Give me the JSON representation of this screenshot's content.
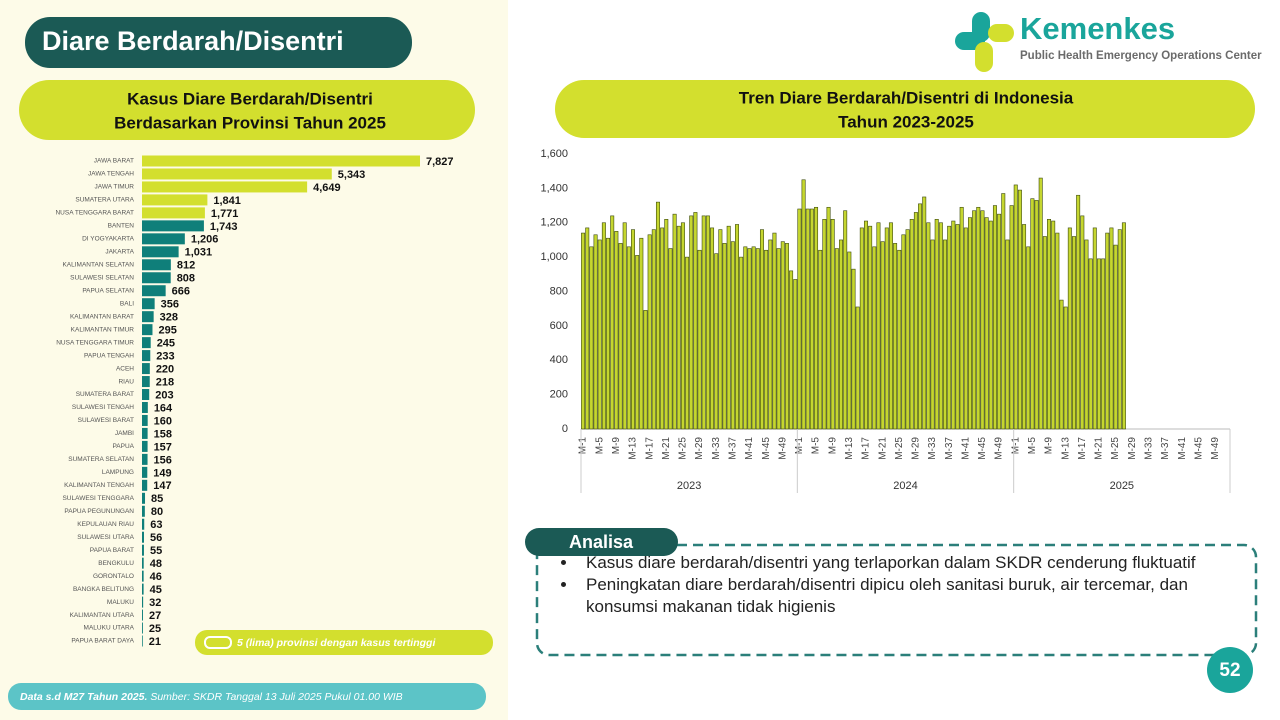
{
  "title": "Diare Berdarah/Disentri",
  "logo": {
    "name": "Kemenkes",
    "tagline": "Public Health Emergency Operations Center"
  },
  "chart_data": [
    {
      "type": "bar",
      "orientation": "horizontal",
      "title": [
        "Kasus Diare Berdarah/Disentri",
        "Berdasarkan Provinsi Tahun 2025"
      ],
      "categories": [
        "JAWA BARAT",
        "JAWA TENGAH",
        "JAWA TIMUR",
        "SUMATERA UTARA",
        "NUSA TENGGARA BARAT",
        "BANTEN",
        "DI YOGYAKARTA",
        "JAKARTA",
        "KALIMANTAN SELATAN",
        "SULAWESI SELATAN",
        "PAPUA SELATAN",
        "BALI",
        "KALIMANTAN BARAT",
        "KALIMANTAN TIMUR",
        "NUSA TENGGARA TIMUR",
        "PAPUA TENGAH",
        "ACEH",
        "RIAU",
        "SUMATERA BARAT",
        "SULAWESI TENGAH",
        "SULAWESI BARAT",
        "JAMBI",
        "PAPUA",
        "SUMATERA SELATAN",
        "LAMPUNG",
        "KALIMANTAN TENGAH",
        "SULAWESI TENGGARA",
        "PAPUA PEGUNUNGAN",
        "KEPULAUAN RIAU",
        "SULAWESI UTARA",
        "PAPUA BARAT",
        "BENGKULU",
        "GORONTALO",
        "BANGKA BELITUNG",
        "MALUKU",
        "KALIMANTAN UTARA",
        "MALUKU UTARA",
        "PAPUA BARAT DAYA"
      ],
      "values": [
        7827,
        5343,
        4649,
        1841,
        1771,
        1743,
        1206,
        1031,
        812,
        808,
        666,
        356,
        328,
        295,
        245,
        233,
        220,
        218,
        203,
        164,
        160,
        158,
        157,
        156,
        149,
        147,
        85,
        80,
        63,
        56,
        55,
        48,
        46,
        45,
        32,
        27,
        25,
        21
      ],
      "value_labels": [
        "7,827",
        "5,343",
        "4,649",
        "1,841",
        "1,771",
        "1,743",
        "1,206",
        "1,031",
        "812",
        "808",
        "666",
        "356",
        "328",
        "295",
        "245",
        "233",
        "220",
        "218",
        "203",
        "164",
        "160",
        "158",
        "157",
        "156",
        "149",
        "147",
        "85",
        "80",
        "63",
        "56",
        "55",
        "48",
        "46",
        "45",
        "32",
        "27",
        "25",
        "21"
      ],
      "bar_colors": [
        "#d3df2e",
        "#d3df2e",
        "#d3df2e",
        "#d3df2e",
        "#d3df2e",
        "#0f7f7a",
        "#0f7f7a",
        "#0f7f7a",
        "#0f7f7a",
        "#0f7f7a",
        "#0f7f7a",
        "#0f7f7a",
        "#0f7f7a",
        "#0f7f7a",
        "#0f7f7a",
        "#0f7f7a",
        "#0f7f7a",
        "#0f7f7a",
        "#0f7f7a",
        "#0f7f7a",
        "#0f7f7a",
        "#0f7f7a",
        "#0f7f7a",
        "#0f7f7a",
        "#0f7f7a",
        "#0f7f7a",
        "#0f7f7a",
        "#0f7f7a",
        "#0f7f7a",
        "#0f7f7a",
        "#0f7f7a",
        "#0f7f7a",
        "#0f7f7a",
        "#0f7f7a",
        "#0f7f7a",
        "#0f7f7a",
        "#0f7f7a",
        "#0f7f7a"
      ],
      "note": "5 (lima) provinsi dengan kasus tertinggi",
      "note_color": "#d3df2e"
    },
    {
      "type": "bar",
      "orientation": "vertical",
      "title": [
        "Tren Diare Berdarah/Disentri di Indonesia",
        "Tahun 2023-2025"
      ],
      "categories": [
        "M-1",
        null,
        null,
        null,
        "M-5",
        null,
        null,
        null,
        "M-9",
        null,
        null,
        null,
        "M-13",
        null,
        null,
        null,
        "M-17",
        null,
        null,
        null,
        "M-21",
        null,
        null,
        null,
        "M-25",
        null,
        null,
        null,
        "M-29",
        null,
        null,
        null,
        "M-33",
        null,
        null,
        null,
        "M-37",
        null,
        null,
        null,
        "M-41",
        null,
        null,
        null,
        "M-45",
        null,
        null,
        null,
        "M-49",
        null,
        null,
        null,
        "M-1",
        null,
        null,
        null,
        "M-5",
        null,
        null,
        null,
        "M-9",
        null,
        null,
        null,
        "M-13",
        null,
        null,
        null,
        "M-17",
        null,
        null,
        null,
        "M-21",
        null,
        null,
        null,
        "M-25",
        null,
        null,
        null,
        "M-29",
        null,
        null,
        null,
        "M-33",
        null,
        null,
        null,
        "M-37",
        null,
        null,
        null,
        "M-41",
        null,
        null,
        null,
        "M-45",
        null,
        null,
        null,
        "M-49",
        null,
        null,
        null,
        "M-1",
        null,
        null,
        null,
        "M-5",
        null,
        null,
        null,
        "M-9",
        null,
        null,
        null,
        "M-13",
        null,
        null,
        null,
        "M-17",
        null,
        null,
        null,
        "M-21",
        null,
        null,
        null,
        "M-25",
        null,
        null,
        null,
        "M-29",
        null,
        null,
        null,
        "M-33",
        null,
        null,
        null,
        "M-37",
        null,
        null,
        null,
        "M-41",
        null,
        null,
        null,
        "M-45",
        null,
        null,
        null,
        "M-49",
        null,
        null,
        null
      ],
      "group_labels": [
        "2023",
        "2024",
        "2025"
      ],
      "values": [
        1140,
        1170,
        1060,
        1130,
        1100,
        1200,
        1110,
        1240,
        1150,
        1080,
        1200,
        1060,
        1160,
        1010,
        1110,
        690,
        1130,
        1160,
        1320,
        1170,
        1220,
        1050,
        1250,
        1180,
        1200,
        1000,
        1240,
        1260,
        1040,
        1240,
        1240,
        1170,
        1020,
        1160,
        1080,
        1180,
        1090,
        1190,
        1000,
        1060,
        1050,
        1060,
        1050,
        1160,
        1040,
        1100,
        1140,
        1050,
        1090,
        1080,
        920,
        870,
        1280,
        1450,
        1280,
        1280,
        1290,
        1040,
        1220,
        1290,
        1220,
        1050,
        1100,
        1270,
        1030,
        930,
        710,
        1170,
        1210,
        1180,
        1060,
        1200,
        1090,
        1170,
        1200,
        1080,
        1040,
        1130,
        1160,
        1220,
        1260,
        1310,
        1350,
        1200,
        1100,
        1220,
        1200,
        1100,
        1180,
        1210,
        1190,
        1290,
        1170,
        1230,
        1270,
        1290,
        1270,
        1230,
        1210,
        1300,
        1250,
        1370,
        1100,
        1300,
        1420,
        1390,
        1190,
        1060,
        1340,
        1330,
        1460,
        1120,
        1220,
        1210,
        1140,
        750,
        710,
        1170,
        1120,
        1360,
        1240,
        1100,
        990,
        1170,
        990,
        990,
        1140,
        1170,
        1070,
        1160,
        1200,
        null,
        null,
        null,
        null,
        null,
        null,
        null,
        null,
        null,
        null,
        null,
        null,
        null,
        null,
        null,
        null,
        null,
        null,
        null,
        null,
        null,
        null,
        null,
        null,
        null
      ],
      "color": "#c5d62f",
      "outline": "#3d4a0c",
      "ylim": [
        0,
        1600
      ],
      "yticks": [
        0,
        200,
        400,
        600,
        800,
        {
          "value": 1000,
          "label": "1,000"
        },
        {
          "value": 1200,
          "label": "1,200"
        },
        {
          "value": 1400,
          "label": "1,400"
        },
        {
          "value": 1600,
          "label": "1,600"
        }
      ]
    }
  ],
  "analysis": {
    "heading": "Analisa",
    "points": [
      "Kasus diare berdarah/disentri yang terlaporkan dalam SKDR cenderung fluktuatif",
      "Peningkatan diare berdarah/disentri dipicu oleh sanitasi buruk, air tercemar, dan konsumsi makanan tidak higienis"
    ]
  },
  "footer": {
    "period": "Data s.d M27 Tahun 2025.",
    "source": "Sumber: SKDR Tanggal 13 Juli 2025 Pukul 01.00 WIB"
  },
  "page_number": 52
}
